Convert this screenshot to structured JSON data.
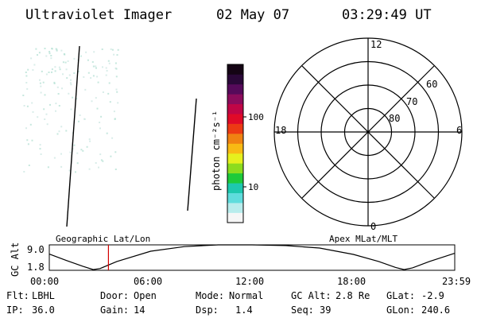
{
  "header": {
    "title": "Ultraviolet Imager",
    "date": "02 May 07",
    "time": "03:29:49 UT"
  },
  "colorbar": {
    "label": "photon cm⁻²s⁻¹",
    "ticks": [
      {
        "label": "100",
        "value": 100
      },
      {
        "label": "10",
        "value": 10
      }
    ],
    "scale": "log",
    "colors": [
      "#f6f6f6",
      "#b8ecec",
      "#5fdcdc",
      "#1ec8ae",
      "#1eca3a",
      "#8cdc1e",
      "#e6f01e",
      "#f8ba14",
      "#f08212",
      "#ec3a14",
      "#e00a28",
      "#c00646",
      "#8c0c5c",
      "#560a5a",
      "#2a0838",
      "#140414"
    ]
  },
  "polar_plot": {
    "mlt_labels": [
      "12",
      "6",
      "0",
      "18"
    ],
    "mlat_labels": [
      "60",
      "70",
      "80"
    ]
  },
  "timeline": {
    "ylabel": "GC Alt",
    "y_ticks": [
      "9.0",
      "1.8"
    ],
    "left_caption": "Geographic Lat/Lon",
    "right_caption": "Apex MLat/MLT",
    "x_ticks": [
      "00:00",
      "06:00",
      "12:00",
      "18:00",
      "23:59"
    ]
  },
  "chart_data": {
    "type": "line",
    "title": "",
    "xlabel": "",
    "ylabel": "GC Alt",
    "x_unit": "hours UT",
    "xlim": [
      0,
      24
    ],
    "ylim": [
      1.8,
      9.0
    ],
    "series": [
      {
        "x": [
          0.0,
          1.0,
          2.0,
          2.6,
          3.0,
          4.0,
          6.0,
          8.0,
          10.0,
          12.0,
          14.0,
          16.0,
          18.0,
          19.5,
          20.5,
          21.0,
          21.5,
          22.5,
          23.98
        ],
        "values": [
          6.4,
          4.6,
          2.9,
          2.0,
          2.3,
          4.3,
          7.2,
          8.5,
          9.0,
          9.0,
          8.8,
          8.1,
          6.3,
          4.3,
          2.6,
          2.0,
          2.5,
          4.3,
          6.6
        ]
      }
    ],
    "marker_time": 3.5
  },
  "footer": {
    "row1": [
      {
        "key": "Flt:",
        "val": "LBHL"
      },
      {
        "key": "Door:",
        "val": "Open"
      },
      {
        "key": "Mode:",
        "val": "Normal"
      },
      {
        "key": "GC Alt:",
        "val": "2.8 Re"
      },
      {
        "key": "GLat:",
        "val": "-2.9"
      }
    ],
    "row2": [
      {
        "key": "IP:",
        "val": "36.0"
      },
      {
        "key": "Gain:",
        "val": "14"
      },
      {
        "key": "Dsp:",
        "val": "1.4"
      },
      {
        "key": "Seq:",
        "val": "39"
      },
      {
        "key": "GLon:",
        "val": "240.6"
      }
    ]
  }
}
